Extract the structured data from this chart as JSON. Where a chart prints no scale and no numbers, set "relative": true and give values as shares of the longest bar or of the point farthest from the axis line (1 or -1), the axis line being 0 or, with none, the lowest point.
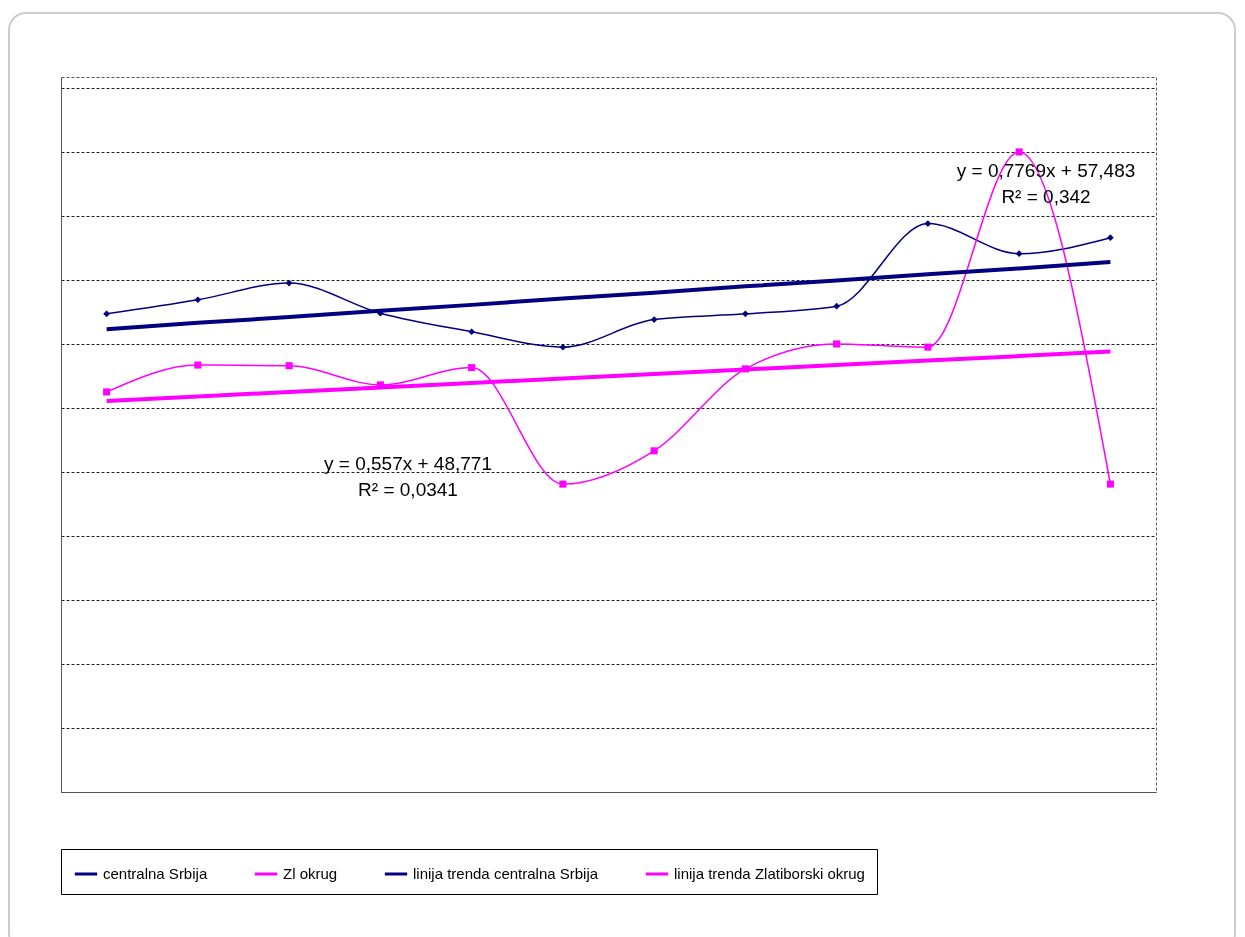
{
  "chart_data": {
    "type": "line",
    "relative": true,
    "grid": "y",
    "legend": "bottom",
    "line_style": "solid",
    "categories": [
      null,
      null,
      null,
      null,
      null,
      null,
      null,
      null,
      null,
      null,
      null,
      null
    ],
    "series": [
      {
        "name": "centralna Srbija",
        "color": "#000080",
        "marker": "diamond",
        "values": [
          0.747,
          0.769,
          0.795,
          0.748,
          0.719,
          0.695,
          0.738,
          0.747,
          0.759,
          0.888,
          0.841,
          0.866
        ]
      },
      {
        "name": "Zl okrug",
        "color": "#ff00ff",
        "marker": "square",
        "values": [
          0.625,
          0.667,
          0.666,
          0.636,
          0.663,
          0.481,
          0.533,
          0.661,
          0.7,
          0.695,
          1,
          0.481
        ]
      },
      {
        "name": "linija trenda centralna Srbija",
        "color": "#000080",
        "marker": "none",
        "values": [
          0.723,
          0.733,
          0.742,
          0.752,
          0.761,
          0.771,
          0.78,
          0.79,
          0.799,
          0.809,
          0.818,
          0.828
        ]
      },
      {
        "name": "linija trenda Zlatiborski okrug",
        "color": "#ff00ff",
        "marker": "none",
        "values": [
          0.611,
          0.618,
          0.625,
          0.632,
          0.639,
          0.646,
          0.653,
          0.66,
          0.667,
          0.674,
          0.681,
          0.688
        ]
      }
    ],
    "annotations": [
      "y = 0,7769x + 57,483\nR² = 0,342",
      "y = 0,557x + 48,771\nR² = 0,0341"
    ]
  }
}
